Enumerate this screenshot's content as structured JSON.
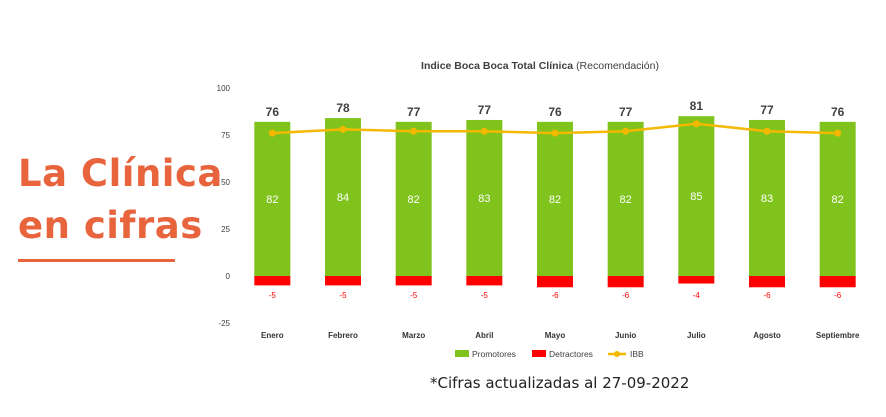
{
  "headline": {
    "line1": "La Clínica",
    "line2": "en cifras"
  },
  "footnote": "*Cifras actualizadas al 27-09-2022",
  "colors": {
    "headline": "#e8643c",
    "promotores": "#7fc31c",
    "detractores": "#ff0000",
    "ibb": "#f5b800"
  },
  "chart_data": {
    "type": "bar",
    "title": "Indice Boca Boca Total Clínica",
    "subtitle": "(Recomendación)",
    "categories": [
      "Enero",
      "Febrero",
      "Marzo",
      "Abril",
      "Mayo",
      "Junio",
      "Julio",
      "Agosto",
      "Septiembre"
    ],
    "ylim": [
      -25,
      100
    ],
    "yticks": [
      100,
      75,
      50,
      25,
      0,
      -25
    ],
    "series": [
      {
        "name": "Promotores",
        "type": "bar",
        "values": [
          82,
          84,
          82,
          83,
          82,
          82,
          85,
          83,
          82
        ]
      },
      {
        "name": "Detractores",
        "type": "bar",
        "values": [
          -5,
          -5,
          -5,
          -5,
          -6,
          -6,
          -4,
          -6,
          -6
        ]
      },
      {
        "name": "IBB",
        "type": "line",
        "values": [
          76,
          78,
          77,
          77,
          76,
          77,
          81,
          77,
          76
        ]
      }
    ],
    "legend": "bottom",
    "grid": false
  }
}
